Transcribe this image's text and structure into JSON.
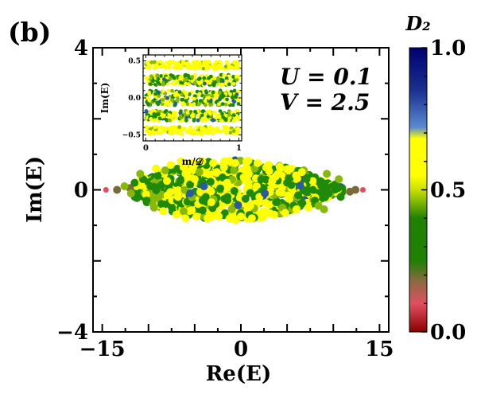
{
  "panel_label": "(b)",
  "annotation": {
    "line1": "U = 0.1",
    "line2": "V = 2.5"
  },
  "colors": {
    "axis": "#000000",
    "point_yellow": "#ffff00",
    "point_green": "#1f8a0a",
    "point_olive": "#88b80a",
    "point_brown": "#7a6a3a",
    "point_red": "#e05060",
    "point_blue": "#2a5aa0"
  },
  "chart_data": [
    {
      "id": "main",
      "type": "scatter",
      "xlabel": "Re(E)",
      "ylabel": "Im(E)",
      "xlim": [
        -16,
        16
      ],
      "ylim": [
        -4,
        4
      ],
      "xticks": [
        -15,
        0,
        15
      ],
      "xtick_labels": [
        "−15",
        "0",
        "15"
      ],
      "yticks": [
        -4,
        0,
        4
      ],
      "ytick_labels": [
        "−4",
        "0",
        "4"
      ],
      "description_of_data": "eigenvalue spectrum, points colored by D2; dense band near Im(E)=0 spanning Re(E) from about -14 to 13",
      "series": [
        {
          "name": "D2 ≈ 0.1 (red)",
          "points": [
            [
              -14.6,
              0
            ],
            [
              13.2,
              0
            ]
          ]
        },
        {
          "name": "D2 ≈ 0.2 (brown)",
          "points": [
            [
              -13.4,
              0
            ],
            [
              12.4,
              0
            ],
            [
              -12.0,
              0.05
            ],
            [
              11.8,
              -0.05
            ]
          ]
        },
        {
          "name": "D2 ≈ 0.3 (green)",
          "points": [
            [
              -11.5,
              0.2
            ],
            [
              -11.2,
              -0.2
            ],
            [
              -10.6,
              0.3
            ],
            [
              -10.2,
              -0.3
            ],
            [
              -9.8,
              0.1
            ],
            [
              -9.0,
              0.4
            ],
            [
              -8.6,
              -0.4
            ],
            [
              -7.8,
              0.2
            ],
            [
              -6.9,
              -0.3
            ],
            [
              -5.5,
              0.15
            ],
            [
              -3.8,
              -0.2
            ],
            [
              -2.0,
              0.35
            ],
            [
              0.5,
              -0.25
            ],
            [
              2.2,
              0.3
            ],
            [
              3.8,
              -0.35
            ],
            [
              5.0,
              0.2
            ],
            [
              6.2,
              -0.15
            ],
            [
              7.1,
              0.3
            ],
            [
              8.0,
              -0.3
            ],
            [
              8.8,
              0.2
            ],
            [
              9.5,
              -0.1
            ],
            [
              10.2,
              0.15
            ],
            [
              10.8,
              -0.2
            ]
          ]
        },
        {
          "name": "D2 ≈ 0.45 (olive)",
          "points": [
            [
              -12.6,
              0.1
            ],
            [
              -11.9,
              -0.1
            ],
            [
              -10.9,
              0.45
            ],
            [
              -9.4,
              -0.5
            ],
            [
              -8.2,
              0.55
            ],
            [
              -6.2,
              -0.6
            ],
            [
              -4.5,
              0.5
            ],
            [
              -1.0,
              -0.55
            ],
            [
              1.5,
              0.6
            ],
            [
              4.5,
              -0.5
            ],
            [
              6.8,
              0.55
            ],
            [
              8.4,
              -0.45
            ],
            [
              9.3,
              0.45
            ],
            [
              9.0,
              -0.55
            ],
            [
              10.6,
              0.3
            ]
          ]
        },
        {
          "name": "D2 ≈ 0.65 (yellow)",
          "points": [
            [
              -9.2,
              0.6
            ],
            [
              -8.4,
              -0.6
            ],
            [
              -7.6,
              0.7
            ],
            [
              -7.0,
              -0.7
            ],
            [
              -6.5,
              0.8
            ],
            [
              -6.0,
              -0.8
            ],
            [
              -5.4,
              0.75
            ],
            [
              -4.8,
              -0.75
            ],
            [
              -4.2,
              0.8
            ],
            [
              -3.6,
              -0.8
            ],
            [
              -3.0,
              0.75
            ],
            [
              -2.4,
              -0.75
            ],
            [
              -1.8,
              0.8
            ],
            [
              -1.2,
              -0.8
            ],
            [
              -0.6,
              0.75
            ],
            [
              0.0,
              -0.75
            ],
            [
              0.6,
              0.8
            ],
            [
              1.2,
              -0.8
            ],
            [
              1.8,
              0.75
            ],
            [
              2.4,
              -0.75
            ],
            [
              3.0,
              0.7
            ],
            [
              3.6,
              -0.7
            ],
            [
              4.2,
              0.65
            ],
            [
              4.8,
              -0.65
            ],
            [
              5.4,
              0.6
            ],
            [
              6.0,
              -0.55
            ],
            [
              6.6,
              0.5
            ],
            [
              7.3,
              -0.5
            ],
            [
              -8.0,
              0.25
            ],
            [
              -6.8,
              -0.2
            ],
            [
              -5.0,
              0.3
            ],
            [
              -3.2,
              -0.35
            ],
            [
              -1.5,
              0.2
            ],
            [
              0.3,
              0.35
            ],
            [
              2.0,
              -0.2
            ],
            [
              3.4,
              0.25
            ],
            [
              5.2,
              -0.25
            ],
            [
              -5.8,
              0.45
            ],
            [
              -2.6,
              0.5
            ],
            [
              1.0,
              -0.45
            ],
            [
              4.0,
              0.45
            ]
          ]
        },
        {
          "name": "D2 ≈ 0.85 (blue)",
          "points": [
            [
              -4.0,
              0.1
            ],
            [
              2.6,
              -0.1
            ],
            [
              6.4,
              0.12
            ]
          ]
        }
      ],
      "colorbar": {
        "label": "D₂",
        "range": [
          0.0,
          1.0
        ],
        "ticks": [
          0.0,
          0.5,
          1.0
        ],
        "tick_labels": [
          "0.0",
          "0.5",
          "1.0"
        ]
      }
    },
    {
      "id": "inset",
      "type": "scatter",
      "xlabel": "m/𝒟",
      "ylabel": "Im(E)",
      "xlim": [
        -0.03,
        1.03
      ],
      "ylim": [
        -0.58,
        0.58
      ],
      "xticks": [
        0,
        1
      ],
      "xtick_labels": [
        "0",
        "1"
      ],
      "yticks": [
        -0.5,
        0.0,
        0.5
      ],
      "ytick_labels": [
        "−0.5",
        "0.0",
        "0.5"
      ],
      "bands": [
        {
          "center": 0.44,
          "half_width": 0.05,
          "mix": "yellow"
        },
        {
          "center": 0.24,
          "half_width": 0.07,
          "mix": "mixed"
        },
        {
          "center": 0.0,
          "half_width": 0.1,
          "mix": "mixed"
        },
        {
          "center": -0.24,
          "half_width": 0.07,
          "mix": "mixed"
        },
        {
          "center": -0.44,
          "half_width": 0.05,
          "mix": "yellow"
        }
      ]
    }
  ]
}
